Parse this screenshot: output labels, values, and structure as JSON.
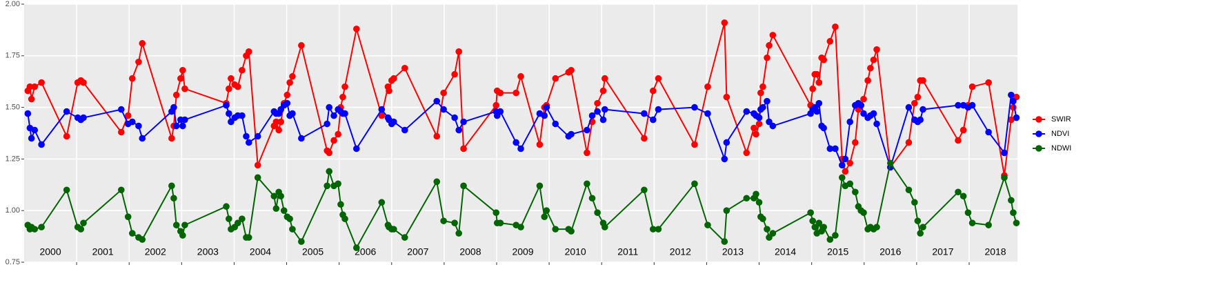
{
  "chart_data": {
    "type": "line",
    "x": [
      2000.07,
      2000.11,
      2000.14,
      2000.2,
      2000.33,
      2000.81,
      2001.02,
      2001.08,
      2001.13,
      2001.85,
      2001.98,
      2002.06,
      2002.18,
      2002.25,
      2002.81,
      2002.85,
      2002.9,
      2002.98,
      2003.02,
      2003.06,
      2003.85,
      2003.9,
      2003.94,
      2004.01,
      2004.07,
      2004.15,
      2004.23,
      2004.28,
      2004.45,
      2004.76,
      2004.8,
      2004.85,
      2004.89,
      2004.95,
      2005.01,
      2005.06,
      2005.11,
      2005.28,
      2005.77,
      2005.81,
      2005.9,
      2005.98,
      2006.03,
      2006.07,
      2006.11,
      2006.33,
      2006.81,
      2006.93,
      2006.95,
      2007.0,
      2007.04,
      2007.25,
      2007.86,
      2007.99,
      2008.2,
      2008.28,
      2008.37,
      2008.99,
      2009.01,
      2009.07,
      2009.37,
      2009.46,
      2009.82,
      2009.91,
      2009.95,
      2010.12,
      2010.37,
      2010.42,
      2010.72,
      2010.82,
      2010.92,
      2011.03,
      2011.06,
      2011.81,
      2011.98,
      2012.08,
      2012.77,
      2013.02,
      2013.34,
      2013.38,
      2013.76,
      2013.9,
      2013.94,
      2014.0,
      2014.03,
      2014.07,
      2014.15,
      2014.19,
      2014.26,
      2014.98,
      2015.02,
      2015.06,
      2015.1,
      2015.14,
      2015.19,
      2015.23,
      2015.35,
      2015.45,
      2015.58,
      2015.64,
      2015.73,
      2015.83,
      2015.89,
      2015.94,
      2015.99,
      2016.07,
      2016.12,
      2016.18,
      2016.24,
      2016.5,
      2016.85,
      2016.96,
      2017.02,
      2017.07,
      2017.12,
      2017.79,
      2017.89,
      2017.98,
      2018.06,
      2018.37,
      2018.67,
      2018.8,
      2018.84,
      2018.9
    ],
    "series": [
      {
        "name": "SWIR",
        "color": "#ff0000",
        "values": [
          1.58,
          1.6,
          1.54,
          1.6,
          1.62,
          1.36,
          1.62,
          1.63,
          1.62,
          1.38,
          1.46,
          1.64,
          1.72,
          1.81,
          1.35,
          1.41,
          1.56,
          1.64,
          1.68,
          1.59,
          1.52,
          1.59,
          1.64,
          1.61,
          1.6,
          1.68,
          1.75,
          1.77,
          1.22,
          1.41,
          1.43,
          1.39,
          1.43,
          1.52,
          1.56,
          1.62,
          1.65,
          1.8,
          1.29,
          1.28,
          1.34,
          1.37,
          1.5,
          1.55,
          1.6,
          1.88,
          1.46,
          1.6,
          1.58,
          1.63,
          1.64,
          1.69,
          1.36,
          1.57,
          1.66,
          1.77,
          1.3,
          1.51,
          1.58,
          1.57,
          1.57,
          1.65,
          1.32,
          1.5,
          1.51,
          1.64,
          1.67,
          1.68,
          1.28,
          1.43,
          1.52,
          1.58,
          1.64,
          1.35,
          1.58,
          1.64,
          1.32,
          1.6,
          1.91,
          1.55,
          1.28,
          1.4,
          1.37,
          1.42,
          1.57,
          1.6,
          1.74,
          1.8,
          1.85,
          1.51,
          1.59,
          1.66,
          1.66,
          1.62,
          1.74,
          1.73,
          1.82,
          1.89,
          1.25,
          1.19,
          1.23,
          1.33,
          1.49,
          1.51,
          1.54,
          1.63,
          1.69,
          1.73,
          1.78,
          1.21,
          1.33,
          1.52,
          1.55,
          1.63,
          1.63,
          1.34,
          1.39,
          1.51,
          1.6,
          1.62,
          1.17,
          1.44,
          1.5,
          1.55
        ]
      },
      {
        "name": "NDVI",
        "color": "#0000ff",
        "values": [
          1.47,
          1.4,
          1.35,
          1.39,
          1.32,
          1.48,
          1.45,
          1.44,
          1.45,
          1.49,
          1.42,
          1.43,
          1.41,
          1.35,
          1.48,
          1.5,
          1.41,
          1.44,
          1.41,
          1.44,
          1.51,
          1.47,
          1.43,
          1.45,
          1.46,
          1.46,
          1.36,
          1.33,
          1.36,
          1.48,
          1.47,
          1.47,
          1.49,
          1.51,
          1.52,
          1.46,
          1.47,
          1.35,
          1.42,
          1.5,
          1.46,
          1.49,
          1.48,
          1.47,
          1.47,
          1.3,
          1.49,
          1.45,
          1.44,
          1.42,
          1.43,
          1.39,
          1.53,
          1.49,
          1.45,
          1.39,
          1.43,
          1.48,
          1.46,
          1.48,
          1.33,
          1.3,
          1.47,
          1.46,
          1.5,
          1.42,
          1.36,
          1.37,
          1.39,
          1.46,
          1.48,
          1.44,
          1.49,
          1.47,
          1.44,
          1.49,
          1.5,
          1.47,
          1.25,
          1.33,
          1.48,
          1.47,
          1.46,
          1.45,
          1.49,
          1.5,
          1.53,
          1.43,
          1.41,
          1.47,
          1.49,
          1.5,
          1.48,
          1.52,
          1.41,
          1.4,
          1.3,
          1.3,
          1.22,
          1.25,
          1.43,
          1.51,
          1.52,
          1.51,
          1.47,
          1.45,
          1.46,
          1.47,
          1.42,
          1.21,
          1.5,
          1.44,
          1.43,
          1.44,
          1.49,
          1.51,
          1.51,
          1.5,
          1.51,
          1.38,
          1.28,
          1.56,
          1.53,
          1.45
        ]
      },
      {
        "name": "NDWI",
        "color": "#006400",
        "values": [
          0.93,
          0.91,
          0.92,
          0.91,
          0.92,
          1.1,
          0.92,
          0.91,
          0.94,
          1.1,
          0.97,
          0.89,
          0.87,
          0.86,
          1.12,
          1.06,
          0.93,
          0.9,
          0.88,
          0.93,
          1.02,
          0.96,
          0.91,
          0.92,
          0.94,
          0.96,
          0.87,
          0.87,
          1.16,
          1.07,
          1.01,
          1.09,
          1.07,
          1.0,
          0.97,
          0.96,
          0.91,
          0.85,
          1.12,
          1.19,
          1.12,
          1.13,
          1.03,
          0.98,
          0.96,
          0.82,
          1.04,
          0.93,
          0.92,
          0.91,
          0.91,
          0.87,
          1.14,
          0.95,
          0.94,
          0.89,
          1.12,
          0.99,
          0.94,
          0.94,
          0.93,
          0.92,
          1.12,
          0.97,
          1.0,
          0.91,
          0.91,
          0.9,
          1.13,
          1.06,
          0.99,
          0.94,
          0.92,
          1.1,
          0.91,
          0.91,
          1.13,
          0.93,
          0.85,
          1.0,
          1.06,
          1.06,
          1.08,
          1.04,
          0.97,
          0.96,
          0.91,
          0.87,
          0.89,
          0.99,
          0.95,
          0.92,
          0.89,
          0.94,
          0.9,
          0.92,
          0.86,
          0.88,
          1.16,
          1.12,
          1.13,
          1.09,
          1.02,
          1.0,
          0.99,
          0.91,
          0.92,
          0.91,
          0.92,
          1.23,
          1.1,
          1.04,
          0.95,
          0.89,
          0.92,
          1.09,
          1.07,
          0.99,
          0.94,
          0.93,
          1.16,
          1.05,
          0.99,
          0.94
        ]
      }
    ],
    "xlim": [
      2000,
      2018.92
    ],
    "xticks": [
      2001,
      2002,
      2003,
      2004,
      2005,
      2006,
      2007,
      2008,
      2009,
      2010,
      2011,
      2012,
      2013,
      2014,
      2015,
      2016,
      2017,
      2018
    ],
    "ylim": [
      0.75,
      2.0
    ],
    "yticks": [
      {
        "value": 0.75,
        "label": "0.75"
      },
      {
        "value": 1,
        "label": "1.00"
      },
      {
        "value": 1.25,
        "label": "1.25"
      },
      {
        "value": 1.5,
        "label": "1.50"
      },
      {
        "value": 1.75,
        "label": "1.75"
      },
      {
        "value": 2,
        "label": "2.00"
      }
    ],
    "annotations": [
      {
        "text": "2000",
        "x": 2000.5
      },
      {
        "text": "2001",
        "x": 2001.5
      },
      {
        "text": "2002",
        "x": 2002.5
      },
      {
        "text": "2003",
        "x": 2003.5
      },
      {
        "text": "2004",
        "x": 2004.5
      },
      {
        "text": "2005",
        "x": 2005.5
      },
      {
        "text": "2006",
        "x": 2006.5
      },
      {
        "text": "2007",
        "x": 2007.5
      },
      {
        "text": "2008",
        "x": 2008.5
      },
      {
        "text": "2009",
        "x": 2009.5
      },
      {
        "text": "2010",
        "x": 2010.5
      },
      {
        "text": "2011",
        "x": 2011.5
      },
      {
        "text": "2012",
        "x": 2012.5
      },
      {
        "text": "2013",
        "x": 2013.5
      },
      {
        "text": "2014",
        "x": 2014.5
      },
      {
        "text": "2015",
        "x": 2015.5
      },
      {
        "text": "2016",
        "x": 2016.5
      },
      {
        "text": "2017",
        "x": 2017.5
      },
      {
        "text": "2018",
        "x": 2018.5
      }
    ],
    "grid": true,
    "legend": "right"
  }
}
